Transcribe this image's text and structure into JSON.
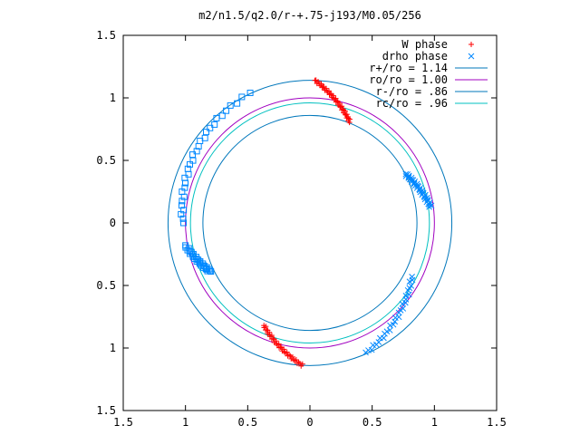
{
  "chart_data": {
    "type": "scatter",
    "title": "m2/n1.5/q2.0/r-+.75-j193/M0.05/256",
    "xlabel": "",
    "ylabel": "",
    "xlim": [
      -1.5,
      1.5
    ],
    "ylim": [
      -1.5,
      1.5
    ],
    "x_ticks": [
      -1.5,
      -1,
      -0.5,
      0,
      0.5,
      1,
      1.5
    ],
    "x_tick_labels": [
      "1.5",
      "1",
      "0.5",
      "0",
      "0.5",
      "1",
      "1.5"
    ],
    "y_ticks": [
      1.5,
      1,
      0.5,
      0,
      -0.5,
      -1,
      -1.5
    ],
    "y_tick_labels": [
      "1.5",
      "1",
      "0.5",
      "0",
      "0.5",
      "1",
      "1.5"
    ],
    "grid": false,
    "legend_position": "top-right",
    "series": [
      {
        "name": "W phase",
        "marker": "plus",
        "color": "#ff0000",
        "clusters": [
          {
            "from": [
              0.04,
              1.14
            ],
            "to": [
              0.32,
              0.81
            ],
            "count": 45
          },
          {
            "from": [
              -0.37,
              -0.82
            ],
            "to": [
              -0.06,
              -1.14
            ],
            "count": 40
          }
        ]
      },
      {
        "name": "drho phase",
        "marker": "x",
        "color": "#0088ff",
        "clusters": [
          {
            "from": [
              0.77,
              0.39
            ],
            "to": [
              0.97,
              0.13
            ],
            "count": 40
          },
          {
            "from": [
              0.82,
              -0.43
            ],
            "to": [
              0.45,
              -1.04
            ],
            "count": 30
          }
        ]
      },
      {
        "name": "",
        "marker": "square",
        "color": "#0088ff",
        "clusters": [
          {
            "from": [
              -0.48,
              1.04
            ],
            "to": [
              -1.02,
              0.0
            ],
            "count": 30,
            "side": "outer"
          },
          {
            "from": [
              -1.0,
              -0.18
            ],
            "to": [
              -0.8,
              -0.39
            ],
            "count": 30,
            "side": "inner"
          }
        ]
      },
      {
        "name": "r+/ro = 1.14",
        "type": "circle",
        "radius": 1.14,
        "color": "#0077bb"
      },
      {
        "name": "ro/ro = 1.00",
        "type": "circle",
        "radius": 1.0,
        "color": "#a000c0"
      },
      {
        "name": "r-/ro = .86",
        "type": "circle",
        "radius": 0.86,
        "color": "#0077bb"
      },
      {
        "name": "rc/ro = .96",
        "type": "circle",
        "radius": 0.96,
        "color": "#00c0c0"
      }
    ]
  }
}
